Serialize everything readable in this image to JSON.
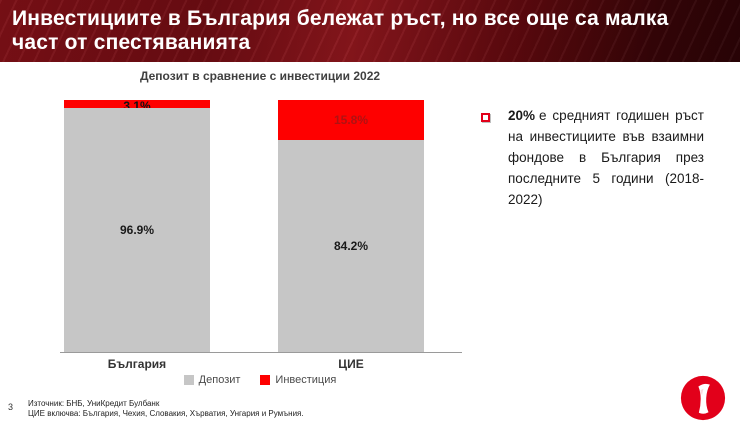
{
  "slide": {
    "title_line1": "Инвестициите в България бележат ръст, но все още са малка",
    "title_line2": "част от спестяванията",
    "page_number": "3",
    "footnote_line1": "Източник: БНБ, УниКредит Булбанк",
    "footnote_line2": "ЦИЕ включва: България, Чехия, Словакия, Хърватия, Унгария и Румъния."
  },
  "bullet": {
    "lead": "20%",
    "rest": "е средният годишен ръст на инвестициите във взаимни фондове в България през последните 5 години (2018-2022)"
  },
  "chart_data": {
    "type": "bar",
    "stacked": true,
    "title": "Депозит в сравнение с инвестиции 2022",
    "categories": [
      "България",
      "ЦИЕ"
    ],
    "series": [
      {
        "name": "Депозит",
        "color": "#c6c6c6",
        "values": [
          96.9,
          84.2
        ],
        "labels": [
          "96.9%",
          "84.2%"
        ]
      },
      {
        "name": "Инвестиция",
        "color": "#fe0000",
        "values": [
          3.1,
          15.8
        ],
        "labels": [
          "3.1%",
          "15.8%"
        ]
      }
    ],
    "ylim": [
      0,
      100
    ],
    "unit": "%",
    "grid": false,
    "legend_position": "bottom"
  },
  "colors": {
    "deposit_gray": "#c6c6c6",
    "investment_red": "#fe0000",
    "header_maroon": "#6b0c12",
    "brand_red": "#e2001a"
  }
}
